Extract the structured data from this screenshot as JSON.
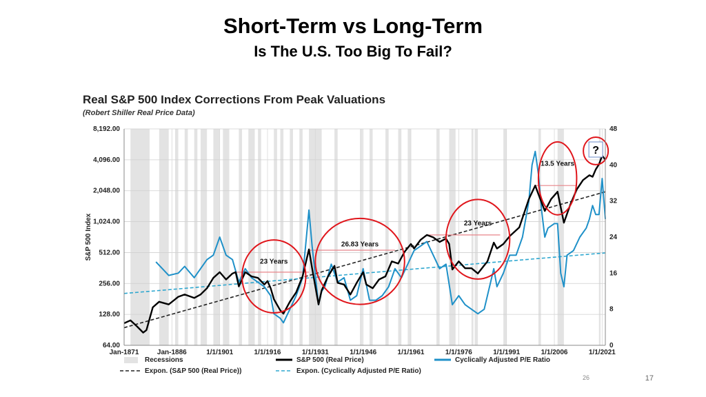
{
  "slide": {
    "title": "Short-Term vs Long-Term",
    "subtitle": "Is The U.S. Too Big To Fail?",
    "page_number": "17",
    "inner_page_number": "26"
  },
  "colors": {
    "price": "#000000",
    "cape": "#1e90c8",
    "trend": "#2ea7cf",
    "recession": "#e3e3e3",
    "circle": "#e0151b",
    "peak_line": "#e8848a"
  },
  "chart_data": {
    "type": "line",
    "title": "Real S&P 500 Index Corrections From Peak Valuations",
    "subtitle": "(Robert Shiller Real Price Data)",
    "ylabel": "S&P 500 Index",
    "y_left_scale": "log2",
    "y_left_ticks": [
      "8,192.00",
      "4,096.00",
      "2,048.00",
      "1,024.00",
      "512.00",
      "256.00",
      "128.00",
      "64.00"
    ],
    "y_left_lim": [
      64,
      8192
    ],
    "y_right_ticks": [
      "48",
      "40",
      "32",
      "24",
      "16",
      "8",
      "0"
    ],
    "y_right_lim": [
      0,
      48
    ],
    "x_ticks": [
      "Jan-1871",
      "Jan-1886",
      "1/1/1901",
      "1/1/1916",
      "1/1/1931",
      "1/1/1946",
      "1/1/1961",
      "1/1/1976",
      "1/1/1991",
      "1/1/2006",
      "1/1/2021"
    ],
    "x_lim": [
      1871,
      2022
    ],
    "recessions": [
      [
        1873,
        1879
      ],
      [
        1882,
        1885
      ],
      [
        1887,
        1888
      ],
      [
        1890,
        1891
      ],
      [
        1893,
        1894
      ],
      [
        1895,
        1897
      ],
      [
        1899,
        1901
      ],
      [
        1902,
        1904
      ],
      [
        1907,
        1908
      ],
      [
        1910,
        1912
      ],
      [
        1913,
        1914
      ],
      [
        1918,
        1919
      ],
      [
        1920,
        1921
      ],
      [
        1923,
        1924
      ],
      [
        1926,
        1927
      ],
      [
        1929,
        1933
      ],
      [
        1937,
        1938
      ],
      [
        1945,
        1945.8
      ],
      [
        1948,
        1949
      ],
      [
        1953,
        1954
      ],
      [
        1957,
        1958
      ],
      [
        1960,
        1961
      ],
      [
        1969,
        1970
      ],
      [
        1973,
        1975
      ],
      [
        1980,
        1980.6
      ],
      [
        1981,
        1982
      ],
      [
        1990,
        1991
      ],
      [
        2001,
        2001.8
      ],
      [
        2007,
        2009
      ],
      [
        2020,
        2020.5
      ]
    ],
    "series": [
      {
        "name": "S&P 500 (Real Price)",
        "axis": "left",
        "x": [
          1871,
          1873,
          1875,
          1877,
          1878,
          1880,
          1882,
          1885,
          1888,
          1890,
          1893,
          1895,
          1897,
          1899,
          1901,
          1903,
          1905,
          1906,
          1907,
          1909,
          1911,
          1913,
          1915,
          1916,
          1917,
          1918,
          1920,
          1921,
          1923,
          1925,
          1927,
          1929,
          1930,
          1932,
          1933,
          1935,
          1937,
          1938,
          1940,
          1942,
          1944,
          1946,
          1947,
          1949,
          1951,
          1953,
          1955,
          1957,
          1959,
          1961,
          1962,
          1964,
          1966,
          1968,
          1970,
          1972,
          1973,
          1974,
          1976,
          1978,
          1980,
          1982,
          1985,
          1987,
          1988,
          1990,
          1992,
          1995,
          1998,
          2000,
          2001,
          2003,
          2005,
          2007,
          2009,
          2011,
          2013,
          2015,
          2017,
          2018,
          2019,
          2020,
          2021,
          2022
        ],
        "values": [
          105,
          112,
          98,
          85,
          90,
          150,
          170,
          160,
          190,
          200,
          185,
          200,
          230,
          290,
          330,
          280,
          320,
          330,
          240,
          330,
          300,
          290,
          250,
          270,
          230,
          180,
          140,
          130,
          170,
          210,
          300,
          550,
          360,
          160,
          220,
          300,
          380,
          260,
          250,
          200,
          260,
          330,
          250,
          230,
          280,
          300,
          420,
          400,
          520,
          620,
          560,
          680,
          760,
          720,
          650,
          700,
          620,
          350,
          420,
          360,
          360,
          320,
          420,
          640,
          560,
          620,
          740,
          900,
          1700,
          2300,
          1900,
          1300,
          1700,
          2000,
          1000,
          1500,
          2100,
          2600,
          2900,
          2800,
          3300,
          3700,
          4500,
          4100
        ]
      },
      {
        "name": "Cyclically Adjusted P/E Ratio",
        "axis": "right",
        "x": [
          1881,
          1883,
          1885,
          1888,
          1890,
          1893,
          1895,
          1897,
          1899,
          1901,
          1903,
          1905,
          1907,
          1909,
          1911,
          1913,
          1915,
          1917,
          1918,
          1920,
          1921,
          1923,
          1925,
          1927,
          1929,
          1930,
          1932,
          1933,
          1934,
          1936,
          1938,
          1940,
          1942,
          1944,
          1946,
          1948,
          1950,
          1952,
          1954,
          1956,
          1958,
          1960,
          1962,
          1964,
          1966,
          1968,
          1970,
          1972,
          1974,
          1976,
          1978,
          1980,
          1982,
          1984,
          1986,
          1987,
          1988,
          1990,
          1992,
          1994,
          1996,
          1998,
          1999,
          2000,
          2001,
          2002,
          2003,
          2004,
          2006,
          2007,
          2008,
          2009,
          2010,
          2012,
          2014,
          2016,
          2017,
          2018,
          2019,
          2020,
          2021,
          2022
        ],
        "values": [
          18.5,
          17,
          15.5,
          16,
          17.5,
          15,
          17,
          19,
          20,
          24,
          20,
          19,
          14,
          17,
          15,
          14,
          13,
          11,
          7,
          6,
          5,
          8,
          11,
          15,
          30,
          22,
          9,
          12,
          13,
          18,
          14,
          15,
          10,
          11,
          17,
          10,
          10,
          11,
          13,
          17,
          15,
          18,
          21,
          22,
          23,
          20,
          17,
          18,
          9,
          11,
          9,
          8,
          7,
          8,
          14,
          17,
          13,
          16,
          20,
          20,
          24,
          32,
          40,
          43,
          38,
          30,
          24,
          26,
          27,
          27,
          16,
          13,
          20,
          21,
          24,
          26,
          28,
          31,
          29,
          29,
          37,
          28
        ]
      }
    ],
    "trendlines": [
      {
        "name": "Expon. (S&P 500 (Real Price))",
        "axis": "left",
        "x": [
          1871,
          2022
        ],
        "values": [
          95,
          2000
        ]
      },
      {
        "name": "Expon. (Cyclically Adjusted P/E Ratio)",
        "axis": "right",
        "x": [
          1871,
          2022
        ],
        "values": [
          11.5,
          20.5
        ]
      }
    ],
    "annotations": [
      {
        "label": "23 Years",
        "cx": 1918,
        "cy": 300,
        "rx": 10,
        "ry": 1.45
      },
      {
        "label": "26.83 Years",
        "cx": 1945,
        "cy": 420,
        "rx": 14,
        "ry": 1.55
      },
      {
        "label": "23 Years",
        "cx": 1982,
        "cy": 690,
        "rx": 10,
        "ry": 1.5
      },
      {
        "label": "13.5 Years",
        "cx": 2007,
        "cy": 2700,
        "rx": 6,
        "ry": 1.45
      },
      {
        "label": "?",
        "cx": 2019,
        "cy": 5000,
        "rx": 3,
        "ry": 1.15
      }
    ],
    "peak_lines": [
      {
        "x": [
          1906,
          1929
        ],
        "value": 330
      },
      {
        "x": [
          1929,
          1956
        ],
        "value": 540
      },
      {
        "x": [
          1966,
          1989
        ],
        "value": 760
      },
      {
        "x": [
          2000,
          2013
        ],
        "value": 2300
      }
    ],
    "legend": [
      {
        "label": "Recessions",
        "style": "recession"
      },
      {
        "label": "S&P 500 (Real Price)",
        "style": "price"
      },
      {
        "label": "Cyclically Adjusted P/E Ratio",
        "style": "cape"
      },
      {
        "label": "Expon. (S&P 500 (Real Price))",
        "style": "price-trend"
      },
      {
        "label": "Expon. (Cyclically Adjusted P/E Ratio)",
        "style": "cape-trend"
      }
    ]
  }
}
